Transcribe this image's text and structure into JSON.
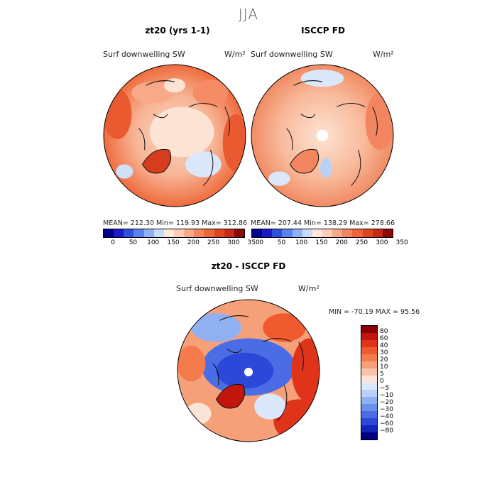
{
  "figure": {
    "title": "JJA"
  },
  "panels": [
    {
      "title": "zt20 (yrs 1-1)",
      "variable": "Surf downwelling SW",
      "units": "W/m²",
      "stats": "MEAN= 212.30   Min= 119.93   Max= 312.86"
    },
    {
      "title": "ISCCP FD",
      "variable": "Surf downwelling SW",
      "units": "W/m²",
      "stats": "MEAN= 207.44   Min= 138.29   Max= 278.66"
    },
    {
      "title": "zt20 - ISCCP FD",
      "variable": "Surf downwelling SW",
      "units": "W/m²",
      "stats": "MIN = -70.19 MAX =  95.56"
    }
  ],
  "colorbar_abs": {
    "ticks": [
      "0",
      "50",
      "100",
      "150",
      "200",
      "250",
      "300",
      "350"
    ],
    "colors": [
      "#00008b",
      "#1a1ac8",
      "#2f4fe0",
      "#5a82ee",
      "#8fb2f6",
      "#c8dcfa",
      "#fde8dc",
      "#fbcdb6",
      "#f7a988",
      "#f38560",
      "#ef6438",
      "#e2431f",
      "#c62a14",
      "#8e0a0a"
    ]
  },
  "colorbar_diff": {
    "ticks": [
      "80",
      "60",
      "40",
      "30",
      "20",
      "10",
      "5",
      "0",
      "−5",
      "−10",
      "−20",
      "−30",
      "−40",
      "−60",
      "−80"
    ],
    "colors": [
      "#8b0000",
      "#c2160d",
      "#e0341a",
      "#ef5a2e",
      "#f47c4c",
      "#f6a07a",
      "#f8c3a8",
      "#fbe4d6",
      "#dbe8fb",
      "#b9d0f7",
      "#8fb1f2",
      "#6a8fec",
      "#4a6de6",
      "#2b48d9",
      "#1424b8",
      "#000080"
    ]
  }
}
